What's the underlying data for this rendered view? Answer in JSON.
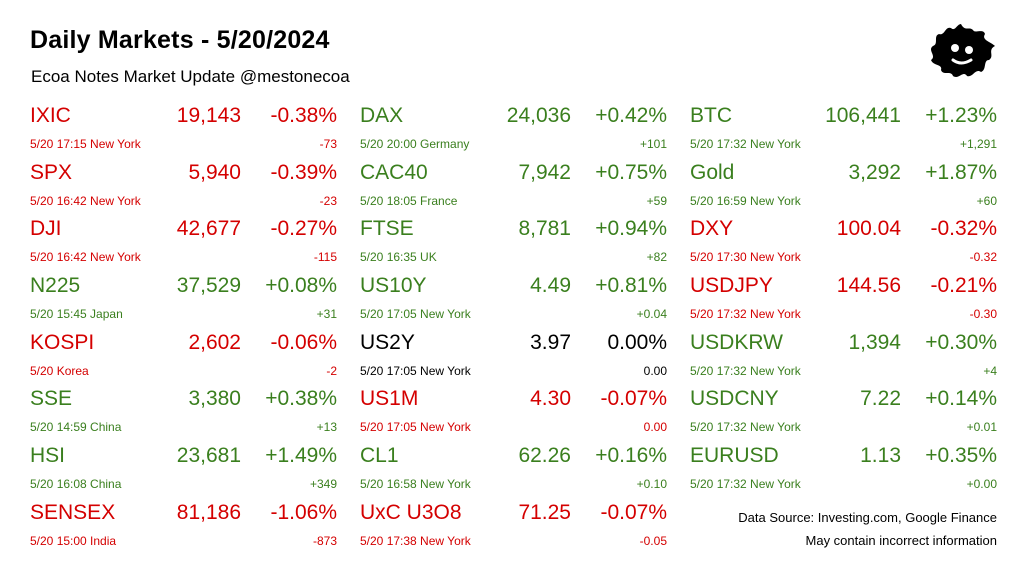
{
  "header": {
    "title": "Daily Markets - 5/20/2024",
    "subtitle": "Ecoa Notes Market Update @mestonecoa"
  },
  "colors": {
    "up": "#3a7f1e",
    "down": "#d40000",
    "flat": "#000000"
  },
  "logo": {
    "icon": "splat-face-logo"
  },
  "columns": [
    {
      "rows": [
        {
          "name": "IXIC",
          "price": "19,143",
          "pct": "-0.38%",
          "meta": "5/20 17:15 New York",
          "chg": "-73",
          "dir": "down"
        },
        {
          "name": "SPX",
          "price": "5,940",
          "pct": "-0.39%",
          "meta": "5/20 16:42 New York",
          "chg": "-23",
          "dir": "down"
        },
        {
          "name": "DJI",
          "price": "42,677",
          "pct": "-0.27%",
          "meta": "5/20 16:42 New York",
          "chg": "-115",
          "dir": "down"
        },
        {
          "name": "N225",
          "price": "37,529",
          "pct": "+0.08%",
          "meta": "5/20 15:45 Japan",
          "chg": "+31",
          "dir": "up"
        },
        {
          "name": "KOSPI",
          "price": "2,602",
          "pct": "-0.06%",
          "meta": "5/20  Korea",
          "chg": "-2",
          "dir": "down"
        },
        {
          "name": "SSE",
          "price": "3,380",
          "pct": "+0.38%",
          "meta": "5/20 14:59 China",
          "chg": "+13",
          "dir": "up"
        },
        {
          "name": "HSI",
          "price": "23,681",
          "pct": "+1.49%",
          "meta": "5/20 16:08 China",
          "chg": "+349",
          "dir": "up"
        },
        {
          "name": "SENSEX",
          "price": "81,186",
          "pct": "-1.06%",
          "meta": "5/20 15:00 India",
          "chg": "-873",
          "dir": "down"
        }
      ]
    },
    {
      "rows": [
        {
          "name": "DAX",
          "price": "24,036",
          "pct": "+0.42%",
          "meta": "5/20 20:00 Germany",
          "chg": "+101",
          "dir": "up"
        },
        {
          "name": "CAC40",
          "price": "7,942",
          "pct": "+0.75%",
          "meta": "5/20 18:05 France",
          "chg": "+59",
          "dir": "up"
        },
        {
          "name": "FTSE",
          "price": "8,781",
          "pct": "+0.94%",
          "meta": "5/20 16:35 UK",
          "chg": "+82",
          "dir": "up"
        },
        {
          "name": "US10Y",
          "price": "4.49",
          "pct": "+0.81%",
          "meta": "5/20 17:05 New York",
          "chg": "+0.04",
          "dir": "up"
        },
        {
          "name": "US2Y",
          "price": "3.97",
          "pct": "0.00%",
          "meta": "5/20 17:05 New York",
          "chg": "0.00",
          "dir": "flat"
        },
        {
          "name": "US1M",
          "price": "4.30",
          "pct": "-0.07%",
          "meta": "5/20 17:05 New York",
          "chg": "0.00",
          "dir": "down"
        },
        {
          "name": "CL1",
          "price": "62.26",
          "pct": "+0.16%",
          "meta": "5/20 16:58 New York",
          "chg": "+0.10",
          "dir": "up"
        },
        {
          "name": "UxC U3O8",
          "price": "71.25",
          "pct": "-0.07%",
          "meta": "5/20 17:38 New York",
          "chg": "-0.05",
          "dir": "down"
        }
      ]
    },
    {
      "rows": [
        {
          "name": "BTC",
          "price": "106,441",
          "pct": "+1.23%",
          "meta": "5/20 17:32 New York",
          "chg": "+1,291",
          "dir": "up"
        },
        {
          "name": "Gold",
          "price": "3,292",
          "pct": "+1.87%",
          "meta": "5/20 16:59 New York",
          "chg": "+60",
          "dir": "up"
        },
        {
          "name": "DXY",
          "price": "100.04",
          "pct": "-0.32%",
          "meta": "5/20 17:30 New York",
          "chg": "-0.32",
          "dir": "down"
        },
        {
          "name": "USDJPY",
          "price": "144.56",
          "pct": "-0.21%",
          "meta": "5/20 17:32 New York",
          "chg": "-0.30",
          "dir": "down"
        },
        {
          "name": "USDKRW",
          "price": "1,394",
          "pct": "+0.30%",
          "meta": "5/20 17:32 New York",
          "chg": "+4",
          "dir": "up"
        },
        {
          "name": "USDCNY",
          "price": "7.22",
          "pct": "+0.14%",
          "meta": "5/20 17:32 New York",
          "chg": "+0.01",
          "dir": "up"
        },
        {
          "name": "EURUSD",
          "price": "1.13",
          "pct": "+0.35%",
          "meta": "5/20 17:32 New York",
          "chg": "+0.00",
          "dir": "up"
        }
      ]
    }
  ],
  "footer": {
    "source": "Data Source: Investing.com, Google Finance",
    "disclaimer": "May contain incorrect information"
  }
}
